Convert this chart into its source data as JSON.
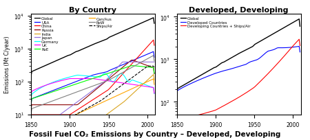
{
  "title_left": "By Country",
  "title_right": "Developed, Developing",
  "footer": "Fossil Fuel CO₂ Emissions by Country – Developed, Developing",
  "ylabel": "Emissions (Mt C/year)",
  "xlabel": "",
  "year_start": 1850,
  "year_end": 2009,
  "ylim_left": [
    10,
    10000
  ],
  "ylim_right": [
    50,
    10000
  ],
  "legend_left": {
    "col1": [
      "Global",
      "USA",
      "China",
      "Russia",
      "India",
      "Japan",
      "Germany",
      "UK",
      "RoE"
    ],
    "col2": [
      "Can/Aus",
      "RoW",
      "Ships/Air"
    ],
    "colors_col1": [
      "black",
      "blue",
      "red",
      "#8B0000",
      "#DAA520",
      "#9370DB",
      "cyan",
      "magenta",
      "lime"
    ],
    "colors_col2": [
      "orange",
      "gray",
      "black"
    ],
    "styles_col2": [
      "-",
      "-",
      "--"
    ]
  },
  "legend_right": {
    "labels": [
      "Global",
      "Developed Countries",
      "Developing Countries + Ships/Air"
    ],
    "colors": [
      "black",
      "blue",
      "red"
    ]
  },
  "footer_fontsize": 11,
  "footer_color": "black"
}
